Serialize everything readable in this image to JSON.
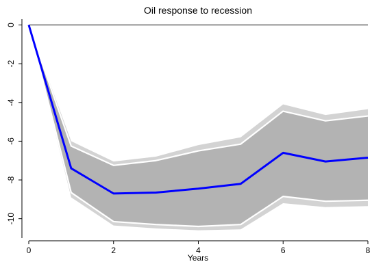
{
  "chart_data": {
    "type": "line",
    "title": "Oil response to recession",
    "xlabel": "Years",
    "ylabel": "",
    "xlim": [
      0,
      8
    ],
    "ylim": [
      -11,
      0.3
    ],
    "x_ticks": [
      0,
      2,
      4,
      6,
      8
    ],
    "y_ticks": [
      0,
      -2,
      -4,
      -6,
      -8,
      -10
    ],
    "zero_line": true,
    "grid": false,
    "x": [
      0,
      1,
      2,
      3,
      4,
      5,
      6,
      7,
      8
    ],
    "bands": [
      {
        "name": "outer",
        "color": "#d3d3d3",
        "upper": [
          0,
          -6.0,
          -7.05,
          -6.8,
          -6.2,
          -5.8,
          -4.1,
          -4.65,
          -4.35
        ],
        "lower": [
          0,
          -8.9,
          -10.35,
          -10.5,
          -10.6,
          -10.55,
          -9.2,
          -9.4,
          -9.35
        ]
      },
      {
        "name": "inner",
        "color": "#b3b3b3",
        "upper": [
          0,
          -6.25,
          -7.25,
          -7.0,
          -6.5,
          -6.15,
          -4.45,
          -4.95,
          -4.7
        ],
        "lower": [
          0,
          -8.65,
          -10.15,
          -10.3,
          -10.4,
          -10.3,
          -8.85,
          -9.1,
          -9.05
        ]
      }
    ],
    "series": [
      {
        "color": "#0000ff",
        "values": [
          0,
          -7.4,
          -8.7,
          -8.65,
          -8.45,
          -8.2,
          -6.6,
          -7.05,
          -6.85
        ]
      }
    ],
    "band_edge_color": "#ffffff",
    "text_color": "#000000"
  }
}
